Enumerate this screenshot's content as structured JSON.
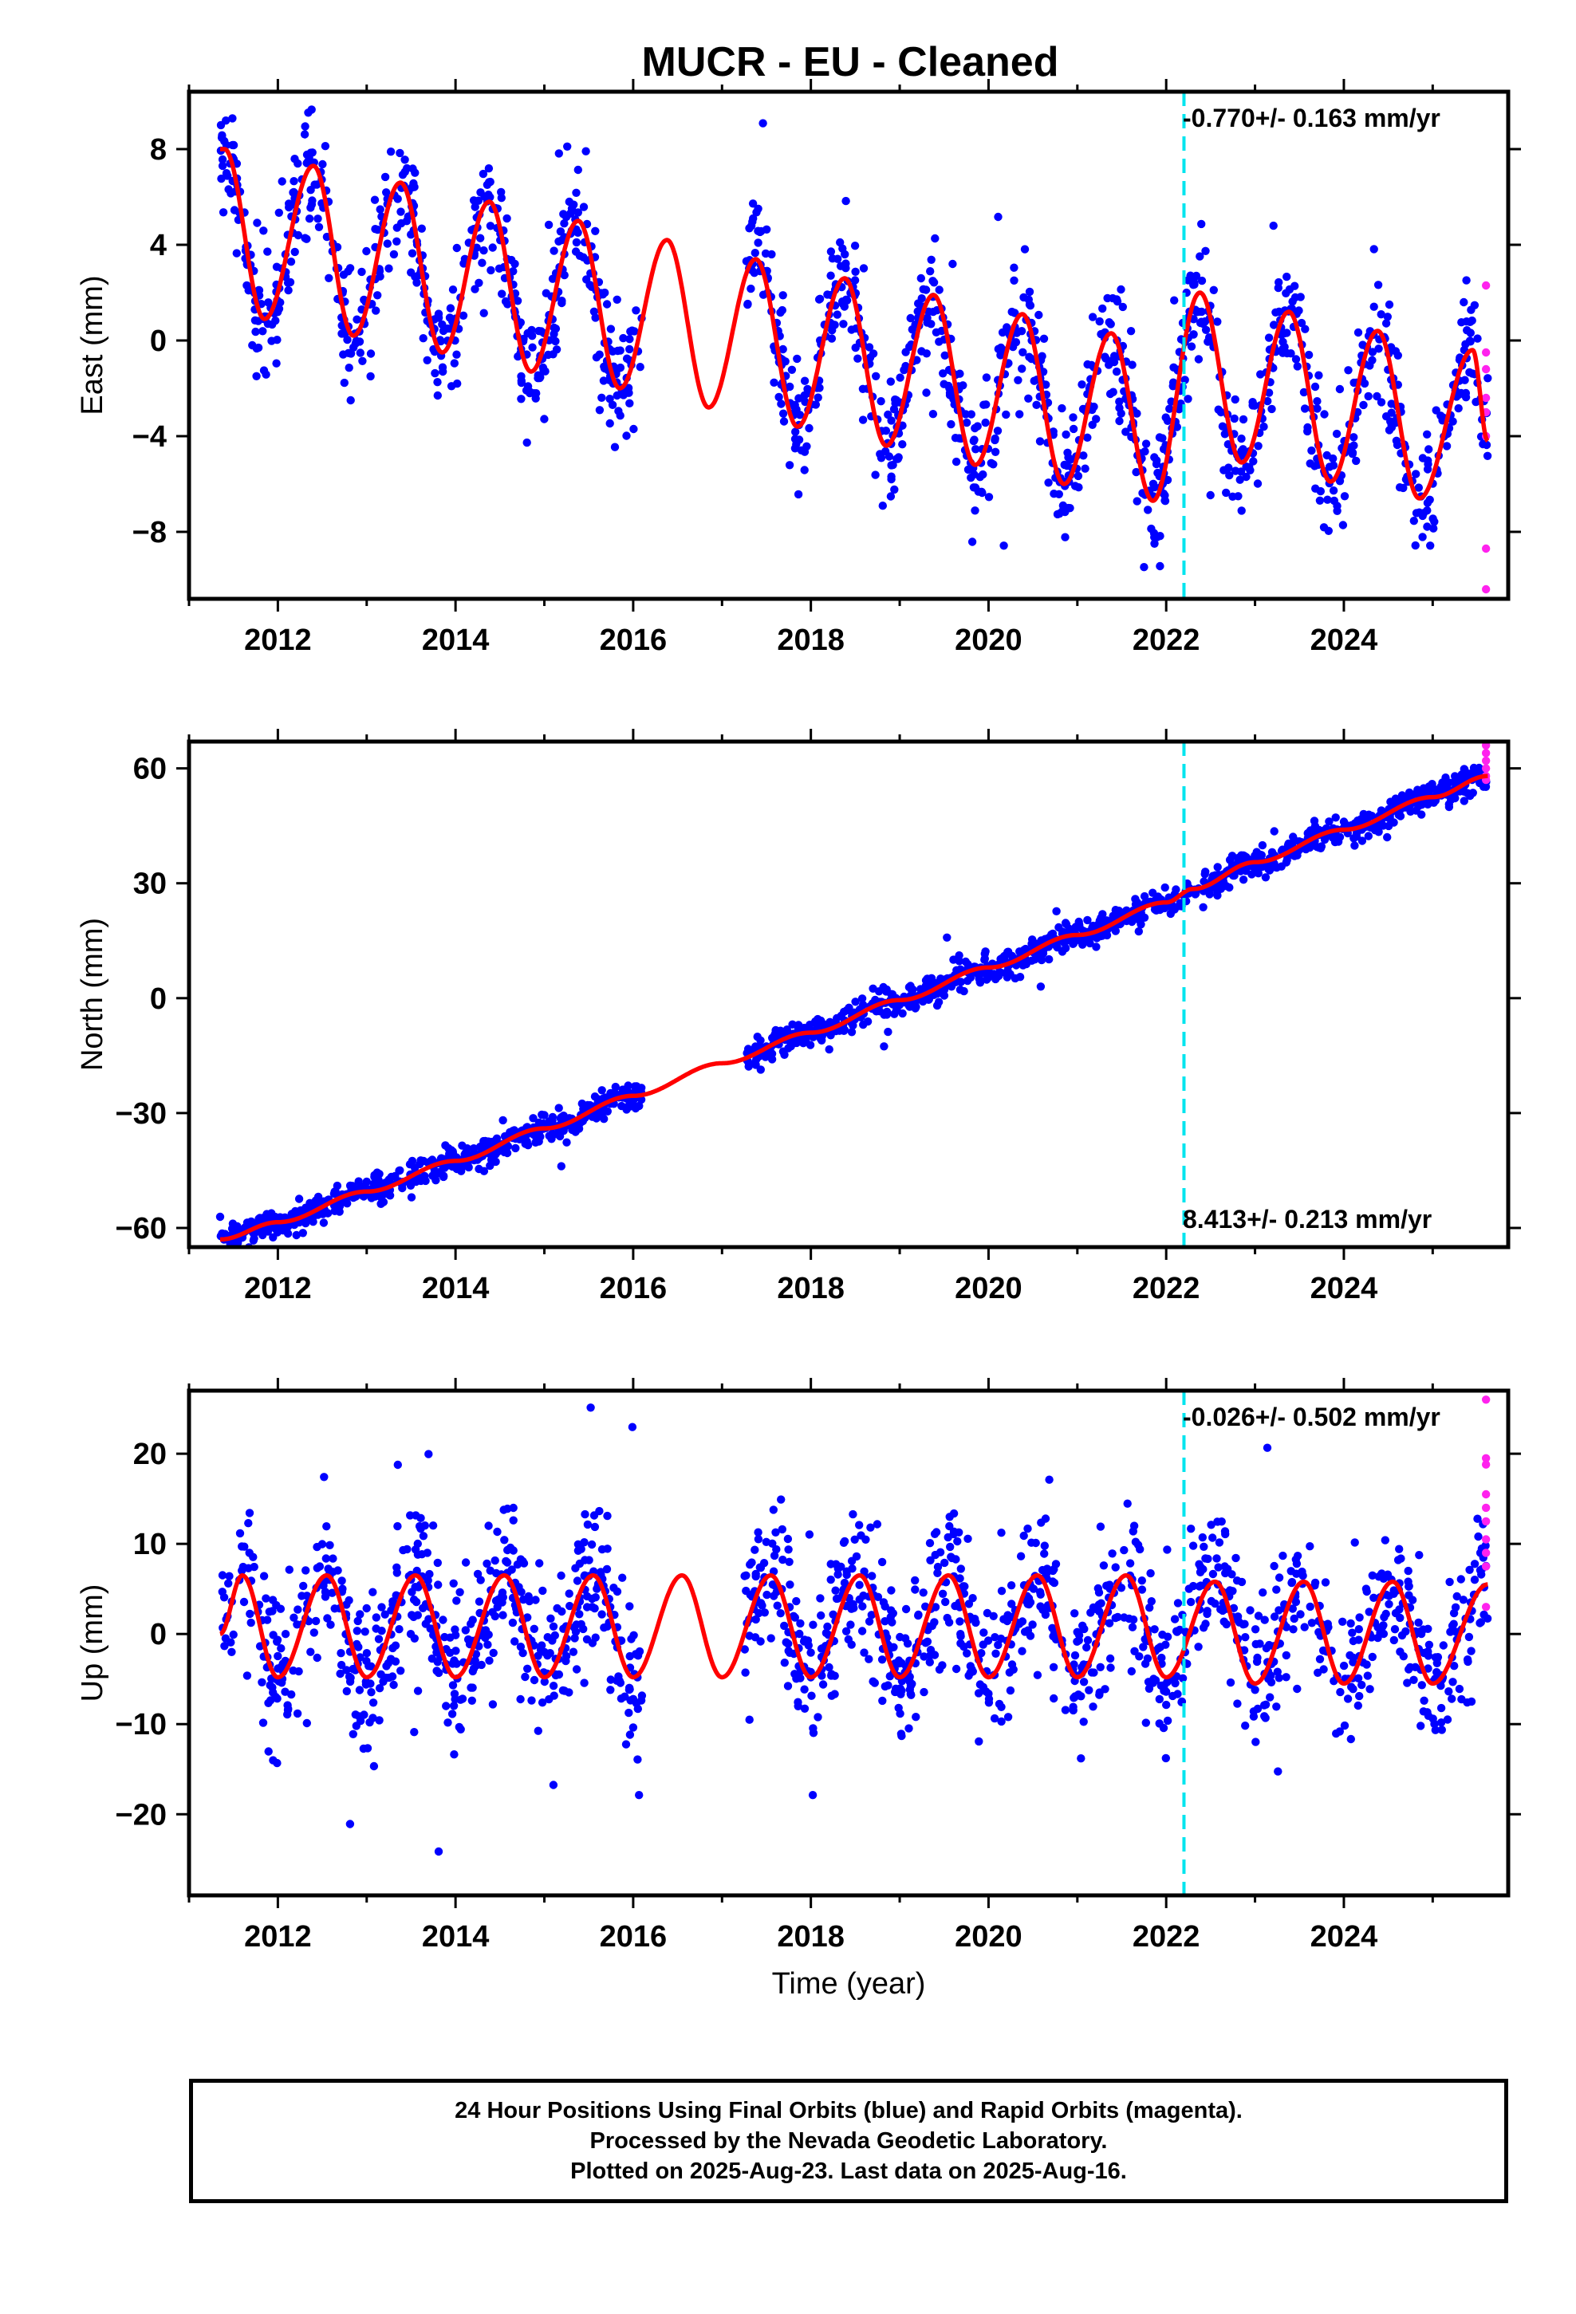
{
  "title": "MUCR  - EU - Cleaned",
  "xlabel": "Time (year)",
  "colors": {
    "final_orbits": "#0000ff",
    "rapid_orbits": "#ff22ee",
    "model_fit": "#ff0000",
    "event_line": "#00e5ee"
  },
  "footer": {
    "line1": "24 Hour Positions Using Final Orbits (blue) and Rapid Orbits (magenta).",
    "line2": "Processed by the Nevada Geodetic Laboratory.",
    "line3": "Plotted on 2025-Aug-23. Last data on 2025-Aug-16."
  },
  "chart_data": [
    {
      "type": "scatter",
      "component": "East",
      "ylabel": "East (mm)",
      "velocity_label": "-0.770+/- 0.163 mm/yr",
      "xlim": [
        2011.0,
        2025.85
      ],
      "ylim": [
        -10.8,
        10.4
      ],
      "xticks": [
        2012,
        2014,
        2016,
        2018,
        2020,
        2022,
        2024
      ],
      "yticks": [
        -8,
        -4,
        0,
        4,
        8
      ],
      "ytick_labels": [
        "−8",
        "−4",
        "0",
        "4",
        "8"
      ],
      "event_line_x": 2022.2,
      "data_start": 2011.35,
      "data_end": 2025.62,
      "gaps": [
        [
          2016.1,
          2017.25
        ]
      ],
      "model": {
        "type": "seasonal_with_trend",
        "description": "red fitted curve: linear trend plus annual oscillation",
        "points": [
          [
            2011.4,
            8.0
          ],
          [
            2011.85,
            0.9
          ],
          [
            2012.4,
            7.3
          ],
          [
            2012.85,
            0.2
          ],
          [
            2013.38,
            6.6
          ],
          [
            2013.85,
            -0.5
          ],
          [
            2014.38,
            5.8
          ],
          [
            2014.85,
            -1.3
          ],
          [
            2015.38,
            5.0
          ],
          [
            2015.85,
            -2.0
          ],
          [
            2016.38,
            4.2
          ],
          [
            2016.85,
            -2.8
          ],
          [
            2017.38,
            3.4
          ],
          [
            2017.85,
            -3.6
          ],
          [
            2018.38,
            2.6
          ],
          [
            2018.85,
            -4.4
          ],
          [
            2019.38,
            1.9
          ],
          [
            2019.85,
            -5.2
          ],
          [
            2020.38,
            1.1
          ],
          [
            2020.85,
            -6.0
          ],
          [
            2021.38,
            0.3
          ],
          [
            2021.85,
            -6.7
          ],
          [
            2022.38,
            2.0
          ],
          [
            2022.85,
            -5.1
          ],
          [
            2023.38,
            1.2
          ],
          [
            2023.85,
            -5.9
          ],
          [
            2024.38,
            0.4
          ],
          [
            2024.85,
            -6.6
          ],
          [
            2025.45,
            -0.4
          ],
          [
            2025.62,
            -4.2
          ]
        ]
      },
      "rapid_points": [
        [
          2025.6,
          2.3
        ],
        [
          2025.6,
          -0.5
        ],
        [
          2025.6,
          -1.2
        ],
        [
          2025.6,
          -2.4
        ],
        [
          2025.6,
          -3.0
        ],
        [
          2025.6,
          -4.0
        ],
        [
          2025.6,
          -8.7
        ],
        [
          2025.6,
          -10.4
        ]
      ],
      "scatter_spread": 1.3,
      "scatter_count": 1500
    },
    {
      "type": "scatter",
      "component": "North",
      "ylabel": "North (mm)",
      "velocity_label": "8.413+/- 0.213 mm/yr",
      "xlim": [
        2011.0,
        2025.85
      ],
      "ylim": [
        -65,
        67
      ],
      "xticks": [
        2012,
        2014,
        2016,
        2018,
        2020,
        2022,
        2024
      ],
      "yticks": [
        -60,
        -30,
        0,
        30,
        60
      ],
      "ytick_labels": [
        "−60",
        "−30",
        "0",
        "30",
        "60"
      ],
      "event_line_x": 2022.2,
      "data_start": 2011.35,
      "data_end": 2025.62,
      "gaps": [
        [
          2016.1,
          2017.25
        ]
      ],
      "model": {
        "type": "linear_with_seasonal",
        "description": "red fitted curve: steady northward trend with small annual ripple",
        "points": [
          [
            2011.35,
            -63.0
          ],
          [
            2012.0,
            -58.5
          ],
          [
            2013.0,
            -50.5
          ],
          [
            2014.0,
            -42.5
          ],
          [
            2015.0,
            -34.0
          ],
          [
            2016.0,
            -25.5
          ],
          [
            2017.0,
            -17.0
          ],
          [
            2018.0,
            -9.0
          ],
          [
            2019.0,
            -0.5
          ],
          [
            2020.0,
            8.0
          ],
          [
            2021.0,
            16.5
          ],
          [
            2022.0,
            25.0
          ],
          [
            2022.3,
            28.5
          ],
          [
            2023.0,
            35.5
          ],
          [
            2024.0,
            44.0
          ],
          [
            2025.0,
            52.5
          ],
          [
            2025.62,
            58.0
          ]
        ]
      },
      "rapid_points": [
        [
          2025.6,
          58.0
        ],
        [
          2025.6,
          60.0
        ],
        [
          2025.6,
          62.0
        ],
        [
          2025.6,
          64.0
        ],
        [
          2025.6,
          66.0
        ],
        [
          2025.6,
          57.0
        ]
      ],
      "scatter_spread": 1.8,
      "scatter_count": 1500
    },
    {
      "type": "scatter",
      "component": "Up",
      "ylabel": "Up (mm)",
      "velocity_label": "-0.026+/- 0.502 mm/yr",
      "xlim": [
        2011.0,
        2025.85
      ],
      "ylim": [
        -29,
        27
      ],
      "xticks": [
        2012,
        2014,
        2016,
        2018,
        2020,
        2022,
        2024
      ],
      "yticks": [
        -20,
        -10,
        0,
        10,
        20
      ],
      "ytick_labels": [
        "−20",
        "−10",
        "0",
        "10",
        "20"
      ],
      "event_line_x": 2022.2,
      "data_start": 2011.35,
      "data_end": 2025.62,
      "gaps": [
        [
          2016.1,
          2017.25
        ]
      ],
      "model": {
        "type": "seasonal",
        "description": "red fitted curve: annual oscillation about zero",
        "points": [
          [
            2011.35,
            0.0
          ],
          [
            2011.6,
            6.5
          ],
          [
            2012.0,
            -4.8
          ],
          [
            2012.55,
            6.5
          ],
          [
            2013.0,
            -4.8
          ],
          [
            2013.55,
            6.5
          ],
          [
            2014.0,
            -4.8
          ],
          [
            2014.55,
            6.5
          ],
          [
            2015.0,
            -4.8
          ],
          [
            2015.55,
            6.5
          ],
          [
            2016.0,
            -4.8
          ],
          [
            2016.55,
            6.5
          ],
          [
            2017.0,
            -4.8
          ],
          [
            2017.55,
            6.5
          ],
          [
            2018.0,
            -4.8
          ],
          [
            2018.55,
            6.5
          ],
          [
            2019.0,
            -4.8
          ],
          [
            2019.55,
            6.5
          ],
          [
            2020.0,
            -4.8
          ],
          [
            2020.55,
            6.5
          ],
          [
            2021.0,
            -4.8
          ],
          [
            2021.55,
            6.5
          ],
          [
            2022.0,
            -4.8
          ],
          [
            2022.55,
            5.8
          ],
          [
            2023.0,
            -5.5
          ],
          [
            2023.55,
            5.8
          ],
          [
            2024.0,
            -5.5
          ],
          [
            2024.55,
            5.8
          ],
          [
            2025.0,
            -5.5
          ],
          [
            2025.62,
            5.5
          ]
        ]
      },
      "rapid_points": [
        [
          2025.6,
          26.0
        ],
        [
          2025.6,
          19.5
        ],
        [
          2025.6,
          18.8
        ],
        [
          2025.6,
          15.5
        ],
        [
          2025.6,
          14.0
        ],
        [
          2025.6,
          12.5
        ],
        [
          2025.6,
          10.5
        ],
        [
          2025.6,
          9.0
        ],
        [
          2025.6,
          7.5
        ],
        [
          2025.6,
          3.0
        ]
      ],
      "scatter_spread": 4.2,
      "scatter_count": 1500
    }
  ]
}
